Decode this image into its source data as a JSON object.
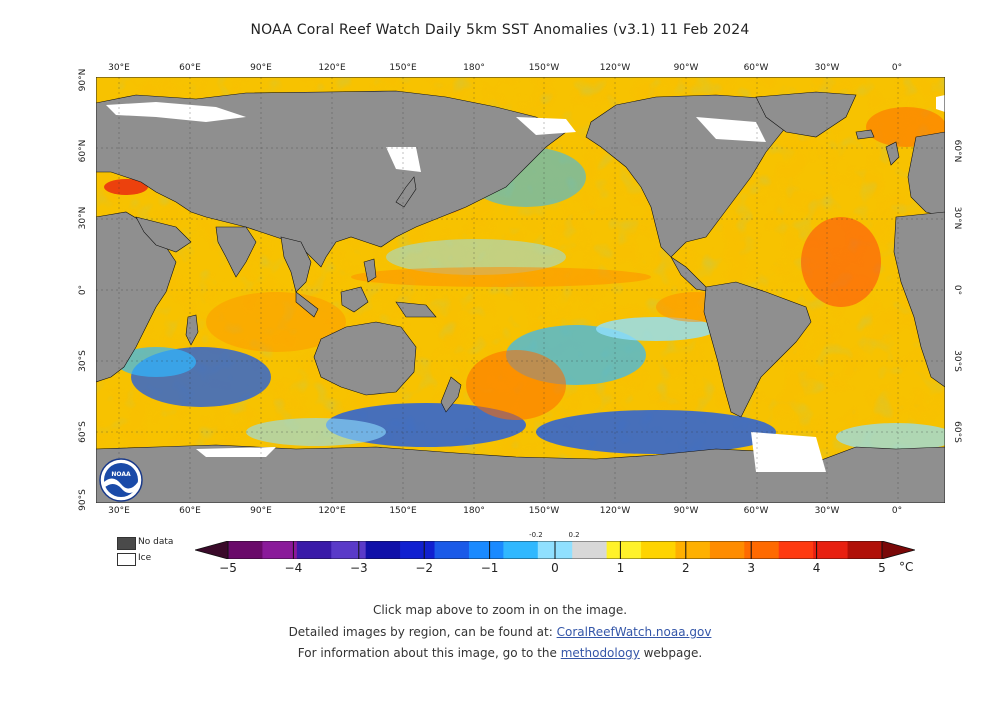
{
  "title": "NOAA Coral Reef Watch Daily 5km SST Anomalies  (v3.1)   11 Feb 2024",
  "map": {
    "lon_labels": [
      "30°E",
      "60°E",
      "90°E",
      "120°E",
      "150°E",
      "180°",
      "150°W",
      "120°W",
      "90°W",
      "60°W",
      "30°W",
      "0°"
    ],
    "lat_labels_left": [
      "90°N",
      "60°N",
      "30°N",
      "0°",
      "30°S",
      "60°S",
      "90°S"
    ],
    "lat_labels_right": [
      "60°N",
      "30°N",
      "0°",
      "30°S",
      "60°S"
    ],
    "colors": {
      "land": "#8f8f8f",
      "ocean_base": "#f7c200",
      "ice": "#ffffff"
    }
  },
  "logo_text": "NOAA",
  "legend": {
    "no_data": "No data",
    "ice": "Ice"
  },
  "colorbar": {
    "labels": [
      "−5",
      "−4",
      "−3",
      "−2",
      "−1",
      "0",
      "1",
      "2",
      "3",
      "4",
      "5"
    ],
    "small_labels": [
      "-0.2",
      "0.2"
    ],
    "unit": "°C",
    "colors": [
      "#3a0a2a",
      "#6a0a6a",
      "#8a1a9a",
      "#3a1aa8",
      "#5a3ac8",
      "#1010a8",
      "#1020d0",
      "#1a5ae8",
      "#1a8aff",
      "#30b8ff",
      "#90e0ff",
      "#d8d8d8",
      "#fff22a",
      "#ffd400",
      "#ffb000",
      "#ff8c00",
      "#ff6a00",
      "#ff3a10",
      "#e82010",
      "#b01008",
      "#7a0808"
    ]
  },
  "notes": {
    "line1": "Click map above to zoom in on the image.",
    "line2_prefix": "Detailed images by region, can be found at: ",
    "line2_link": "CoralReefWatch.noaa.gov",
    "line3_prefix": "For information about this image, go to the ",
    "line3_link": "methodology",
    "line3_suffix": " webpage."
  }
}
